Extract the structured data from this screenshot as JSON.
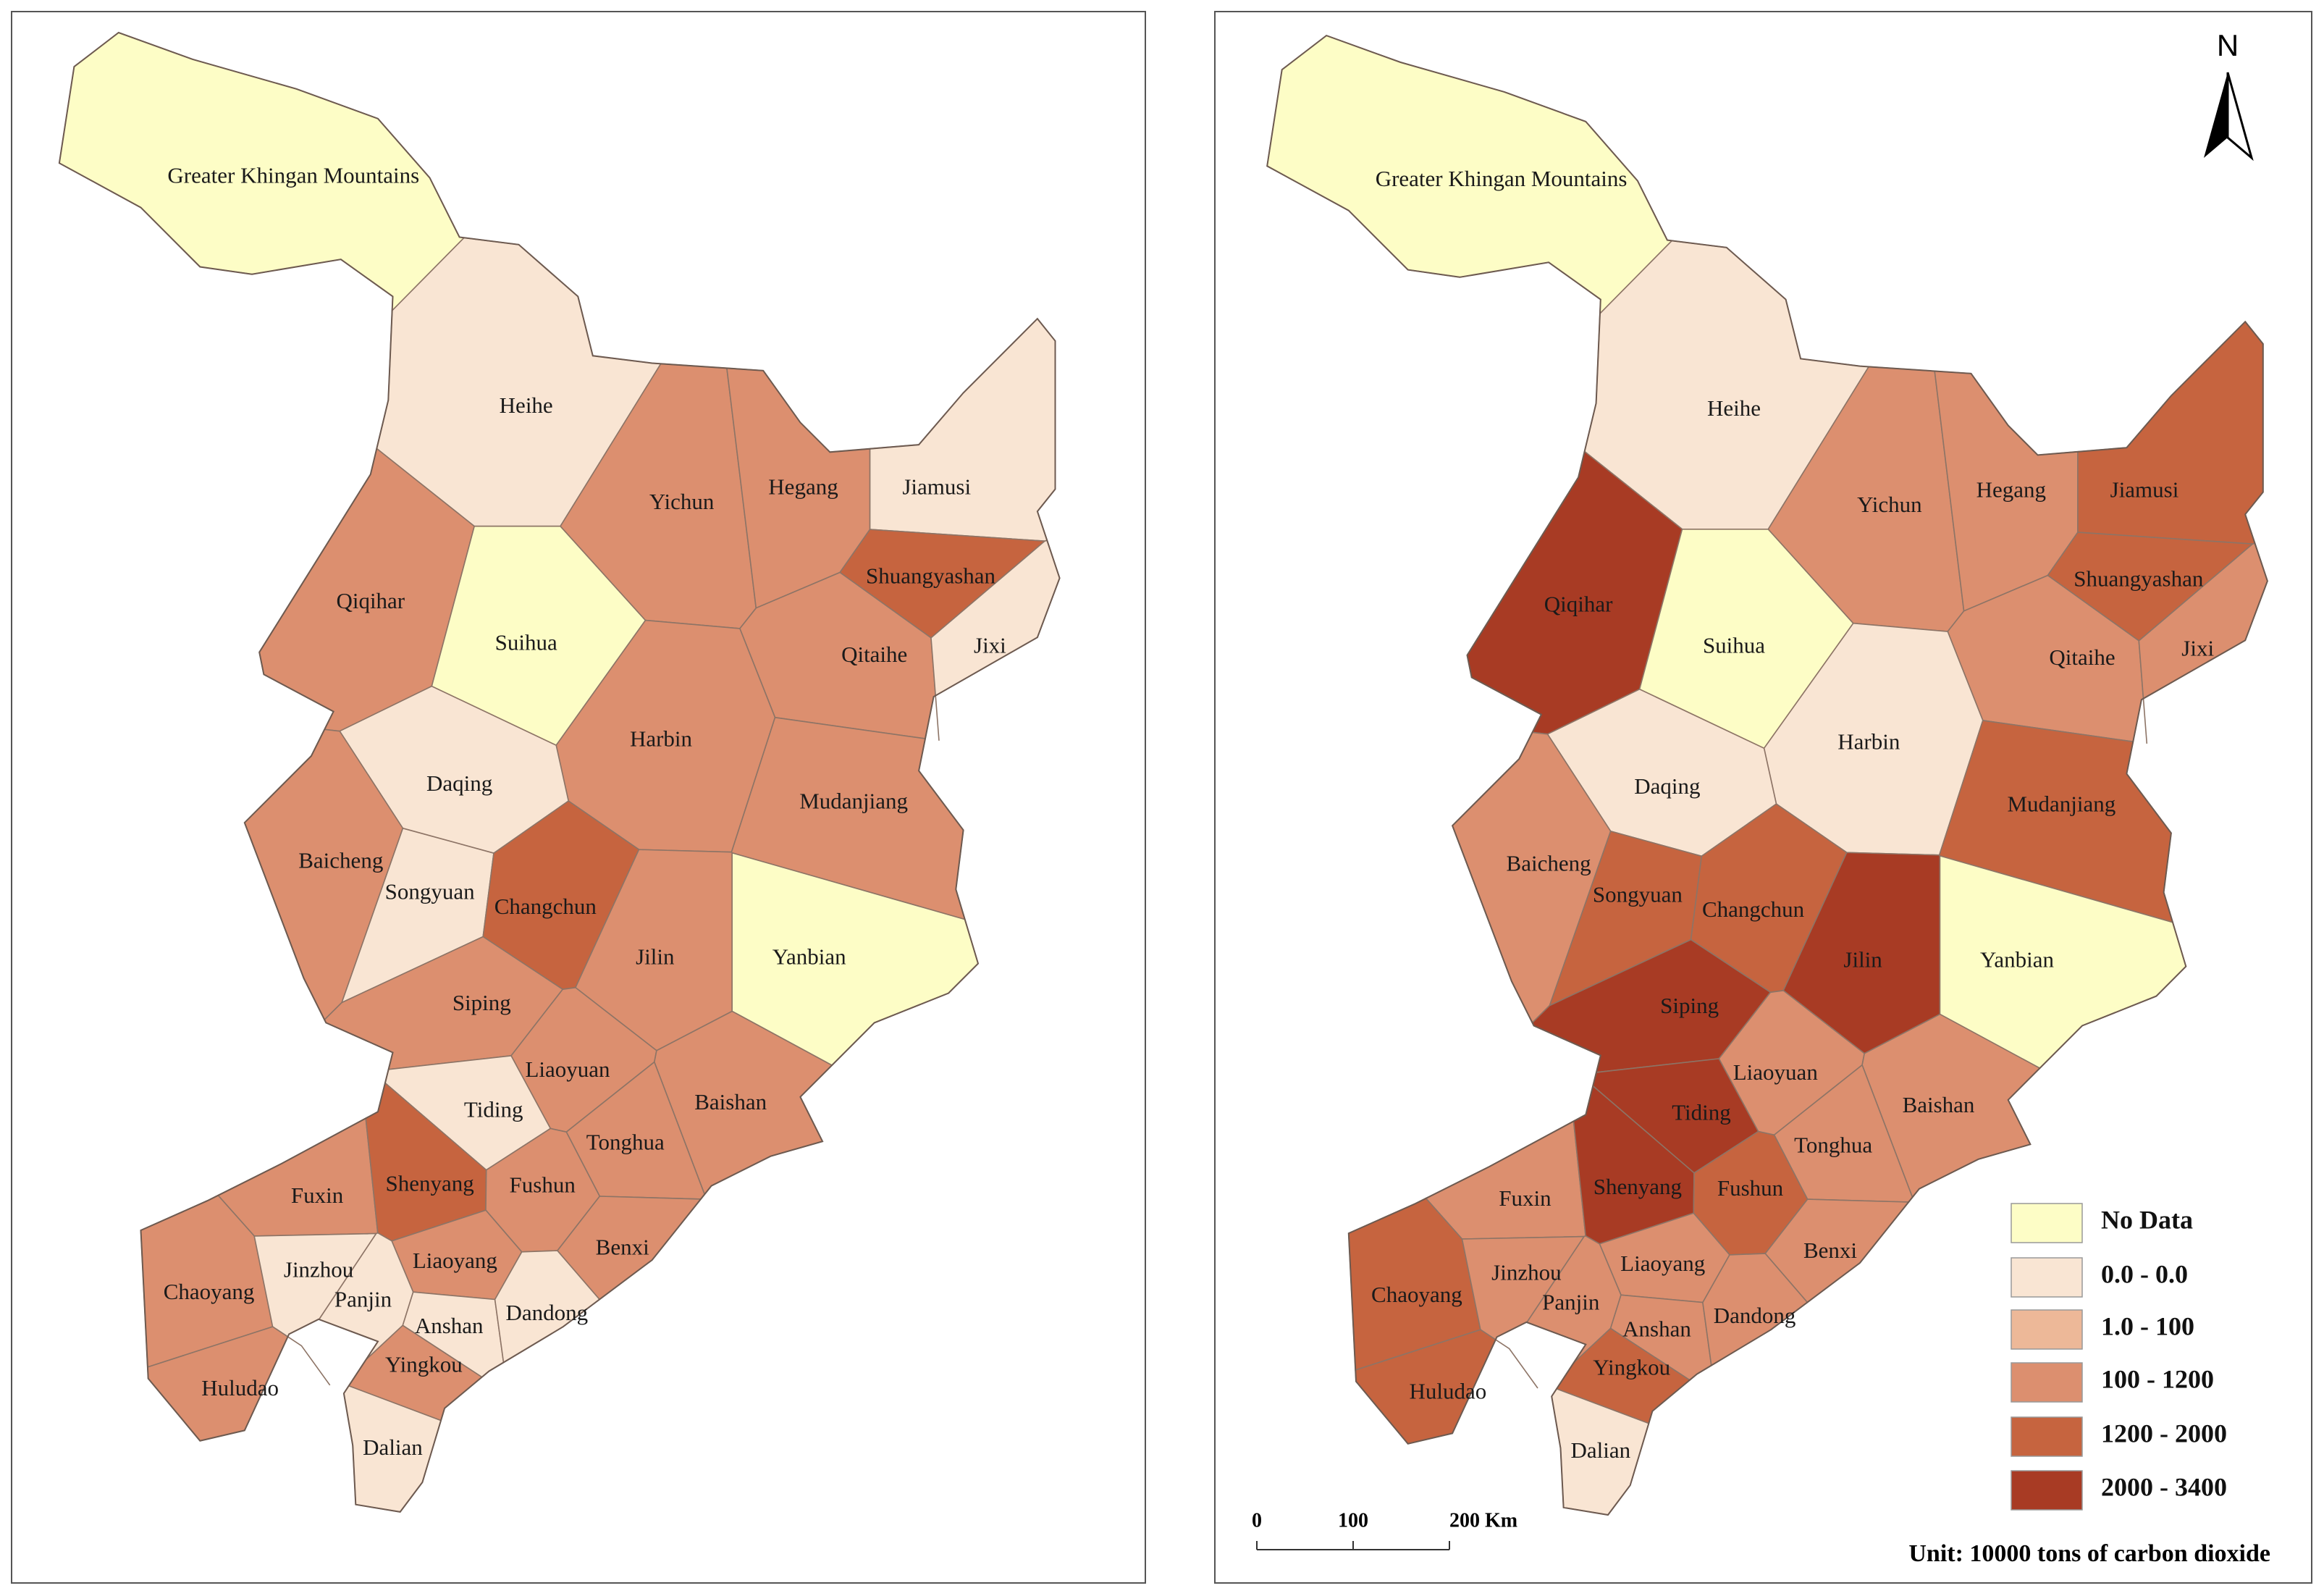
{
  "maps": [
    {
      "regions": [
        {
          "name": "Greater Khingan Mountains",
          "class": "No Data"
        },
        {
          "name": "Heihe",
          "class": "0.0 - 0.0"
        },
        {
          "name": "Qiqihar",
          "class": "100 - 1200"
        },
        {
          "name": "Suihua",
          "class": "No Data"
        },
        {
          "name": "Yichun",
          "class": "100 - 1200"
        },
        {
          "name": "Hegang",
          "class": "100 - 1200"
        },
        {
          "name": "Jiamusi",
          "class": "0.0 - 0.0"
        },
        {
          "name": "Shuangyashan",
          "class": "1200 - 2000"
        },
        {
          "name": "Qitaihe",
          "class": "100 - 1200"
        },
        {
          "name": "Jixi",
          "class": "0.0 - 0.0"
        },
        {
          "name": "Harbin",
          "class": "100 - 1200"
        },
        {
          "name": "Mudanjiang",
          "class": "100 - 1200"
        },
        {
          "name": "Daqing",
          "class": "0.0 - 0.0"
        },
        {
          "name": "Baicheng",
          "class": "100 - 1200"
        },
        {
          "name": "Songyuan",
          "class": "0.0 - 0.0"
        },
        {
          "name": "Changchun",
          "class": "1200 - 2000"
        },
        {
          "name": "Jilin",
          "class": "100 - 1200"
        },
        {
          "name": "Yanbian",
          "class": "No Data"
        },
        {
          "name": "Siping",
          "class": "100 - 1200"
        },
        {
          "name": "Liaoyuan",
          "class": "100 - 1200"
        },
        {
          "name": "Tiding",
          "class": "0.0 - 0.0"
        },
        {
          "name": "Baishan",
          "class": "100 - 1200"
        },
        {
          "name": "Tonghua",
          "class": "100 - 1200"
        },
        {
          "name": "Fuxin",
          "class": "100 - 1200"
        },
        {
          "name": "Shenyang",
          "class": "1200 - 2000"
        },
        {
          "name": "Fushun",
          "class": "100 - 1200"
        },
        {
          "name": "Benxi",
          "class": "100 - 1200"
        },
        {
          "name": "Liaoyang",
          "class": "100 - 1200"
        },
        {
          "name": "Chaoyang",
          "class": "100 - 1200"
        },
        {
          "name": "Jinzhou",
          "class": "0.0 - 0.0"
        },
        {
          "name": "Panjin",
          "class": "0.0 - 0.0"
        },
        {
          "name": "Anshan",
          "class": "0.0 - 0.0"
        },
        {
          "name": "Dandong",
          "class": "0.0 - 0.0"
        },
        {
          "name": "Yingkou",
          "class": "100 - 1200"
        },
        {
          "name": "Huludao",
          "class": "100 - 1200"
        },
        {
          "name": "Dalian",
          "class": "0.0 - 0.0"
        }
      ]
    },
    {
      "regions": [
        {
          "name": "Greater Khingan Mountains",
          "class": "No Data"
        },
        {
          "name": "Heihe",
          "class": "0.0 - 0.0"
        },
        {
          "name": "Qiqihar",
          "class": "2000 - 3400"
        },
        {
          "name": "Suihua",
          "class": "No Data"
        },
        {
          "name": "Yichun",
          "class": "100 - 1200"
        },
        {
          "name": "Hegang",
          "class": "100 - 1200"
        },
        {
          "name": "Jiamusi",
          "class": "1200 - 2000"
        },
        {
          "name": "Shuangyashan",
          "class": "1200 - 2000"
        },
        {
          "name": "Qitaihe",
          "class": "100 - 1200"
        },
        {
          "name": "Jixi",
          "class": "100 - 1200"
        },
        {
          "name": "Harbin",
          "class": "0.0 - 0.0"
        },
        {
          "name": "Mudanjiang",
          "class": "1200 - 2000"
        },
        {
          "name": "Daqing",
          "class": "0.0 - 0.0"
        },
        {
          "name": "Baicheng",
          "class": "100 - 1200"
        },
        {
          "name": "Songyuan",
          "class": "1200 - 2000"
        },
        {
          "name": "Changchun",
          "class": "1200 - 2000"
        },
        {
          "name": "Jilin",
          "class": "2000 - 3400"
        },
        {
          "name": "Yanbian",
          "class": "No Data"
        },
        {
          "name": "Siping",
          "class": "2000 - 3400"
        },
        {
          "name": "Liaoyuan",
          "class": "100 - 1200"
        },
        {
          "name": "Tiding",
          "class": "2000 - 3400"
        },
        {
          "name": "Baishan",
          "class": "100 - 1200"
        },
        {
          "name": "Tonghua",
          "class": "100 - 1200"
        },
        {
          "name": "Fuxin",
          "class": "100 - 1200"
        },
        {
          "name": "Shenyang",
          "class": "2000 - 3400"
        },
        {
          "name": "Fushun",
          "class": "1200 - 2000"
        },
        {
          "name": "Benxi",
          "class": "100 - 1200"
        },
        {
          "name": "Liaoyang",
          "class": "100 - 1200"
        },
        {
          "name": "Chaoyang",
          "class": "1200 - 2000"
        },
        {
          "name": "Jinzhou",
          "class": "100 - 1200"
        },
        {
          "name": "Panjin",
          "class": "100 - 1200"
        },
        {
          "name": "Anshan",
          "class": "100 - 1200"
        },
        {
          "name": "Dandong",
          "class": "100 - 1200"
        },
        {
          "name": "Yingkou",
          "class": "1200 - 2000"
        },
        {
          "name": "Huludao",
          "class": "1200 - 2000"
        },
        {
          "name": "Dalian",
          "class": "0.0 - 0.0"
        }
      ]
    }
  ],
  "legend": {
    "items": [
      {
        "label": "No Data",
        "color": "#fdfdc6"
      },
      {
        "label": "0.0 - 0.0",
        "color": "#f9e5d3"
      },
      {
        "label": "1.0 - 100",
        "color": "#edb898"
      },
      {
        "label": "100 - 1200",
        "color": "#dc8f6f"
      },
      {
        "label": "1200 - 2000",
        "color": "#c6643f"
      },
      {
        "label": "2000 - 3400",
        "color": "#a83b24"
      }
    ]
  },
  "north": "N",
  "scale_bar": {
    "labels": [
      "0",
      "100",
      "200 Km"
    ]
  },
  "unit": "Unit: 10000 tons of carbon dioxide"
}
